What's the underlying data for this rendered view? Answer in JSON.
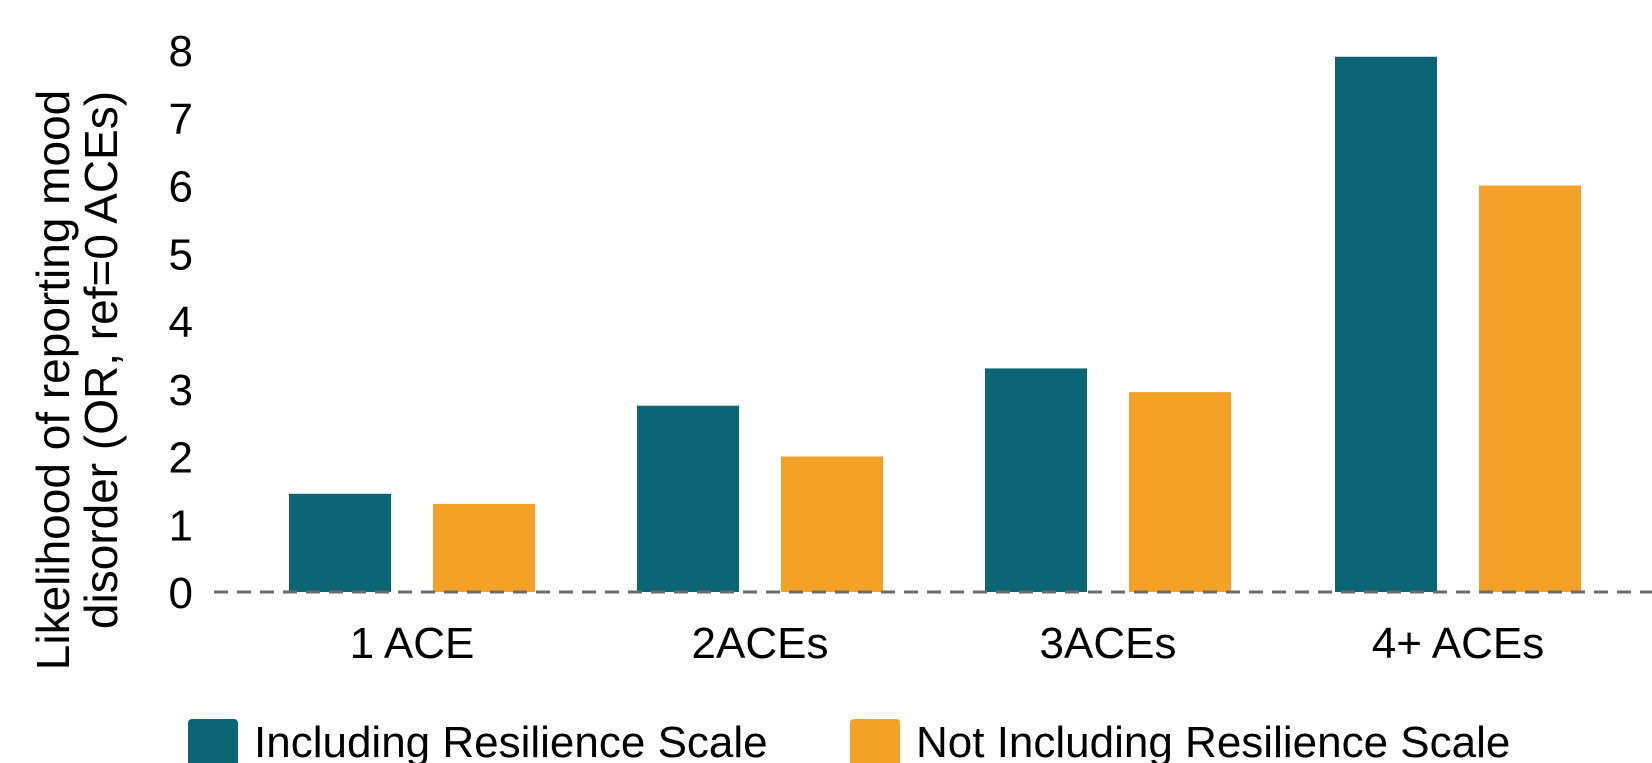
{
  "chart_data": {
    "type": "bar",
    "title": "",
    "ylabel_line1": "Likelihood of reporting mood",
    "ylabel_line2": "disorder  (OR, ref=0 ACEs)",
    "xlabel": "",
    "categories": [
      "1 ACE",
      "2ACEs",
      "3ACEs",
      "4+ ACEs"
    ],
    "series": [
      {
        "name": "Including Resilience Scale",
        "color": "#0b6575",
        "values": [
          1.45,
          2.75,
          3.3,
          7.9
        ]
      },
      {
        "name": "Not Including Resilience Scale",
        "color": "#f4a128",
        "values": [
          1.3,
          2.0,
          2.95,
          6.0
        ]
      }
    ],
    "ylim": [
      0,
      8
    ],
    "yticks": [
      "0",
      "1",
      "2",
      "3",
      "4",
      "5",
      "6",
      "7",
      "8"
    ],
    "grid": false,
    "baseline": "dashed",
    "legend_position": "bottom"
  }
}
